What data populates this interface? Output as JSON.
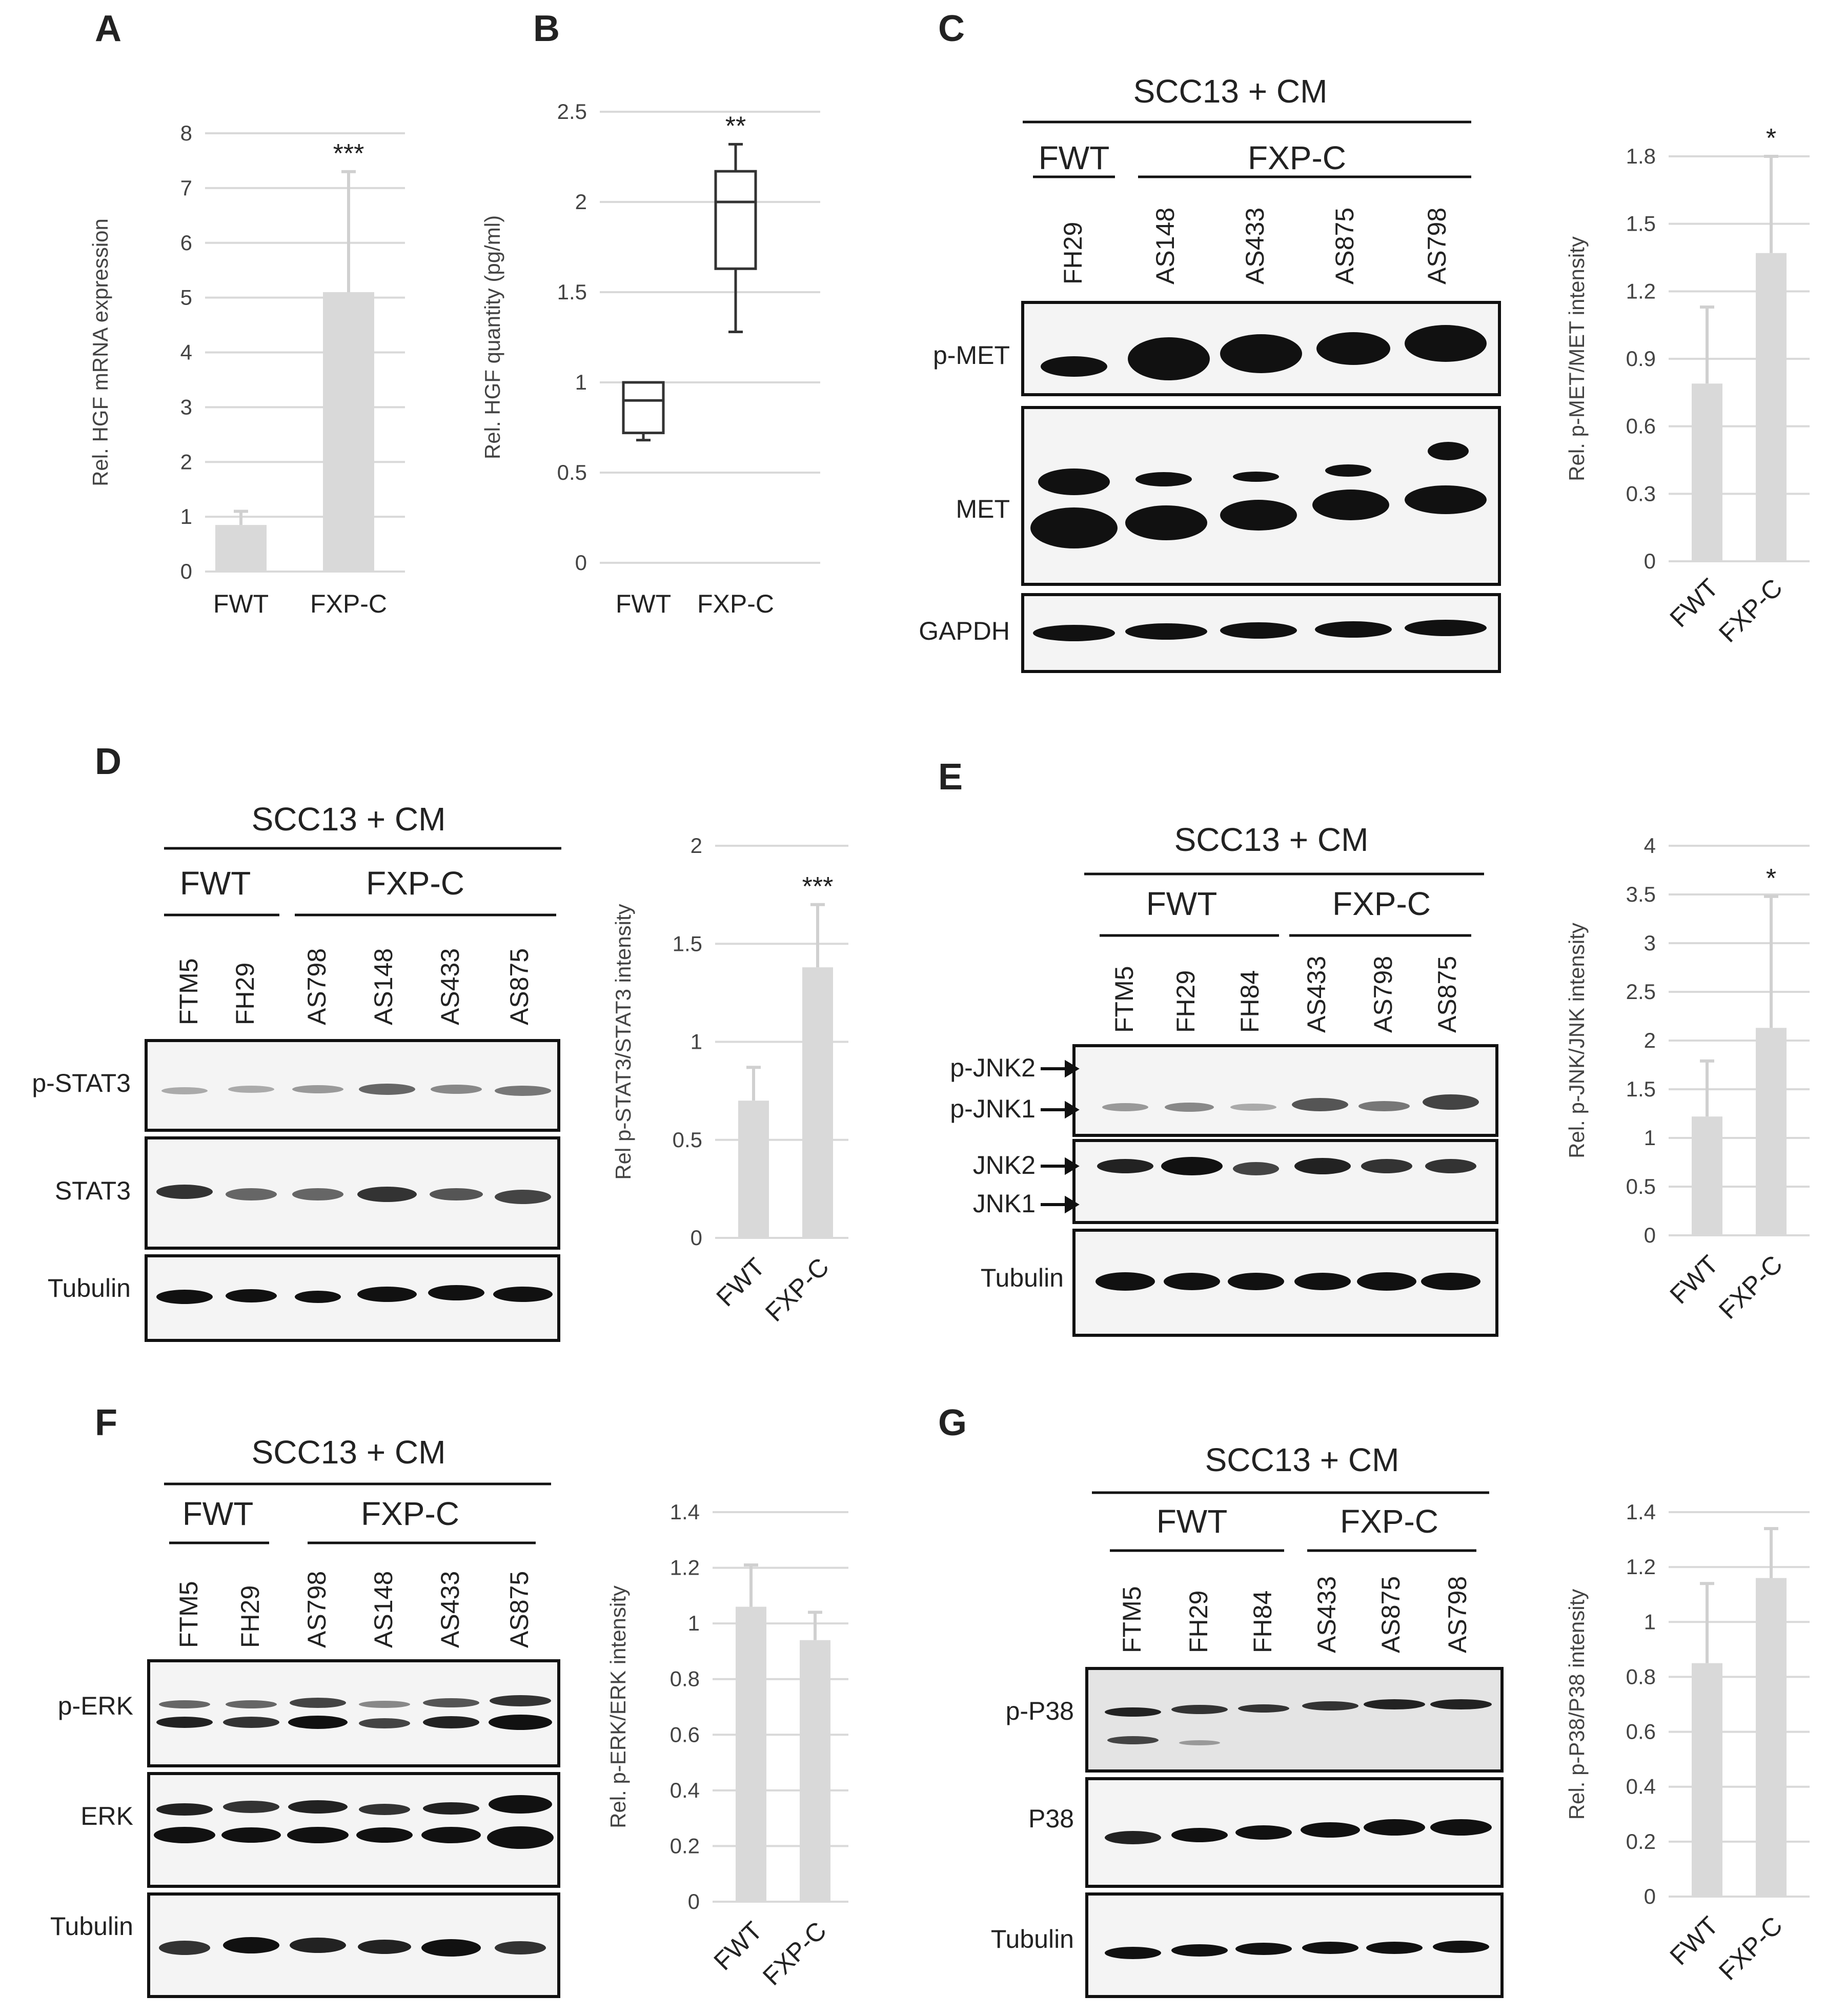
{
  "panels": {
    "A": {
      "label": "A"
    },
    "B": {
      "label": "B"
    },
    "C": {
      "label": "C",
      "header": "SCC13 + CM",
      "group1": "FWT",
      "group2": "FXP-C",
      "lanes": [
        "FH29",
        "AS148",
        "AS433",
        "AS875",
        "AS798"
      ],
      "proteins": [
        "p-MET",
        "MET",
        "GAPDH"
      ]
    },
    "D": {
      "label": "D",
      "header": "SCC13 + CM",
      "group1": "FWT",
      "group2": "FXP-C",
      "lanes": [
        "FTM5",
        "FH29",
        "AS798",
        "AS148",
        "AS433",
        "AS875"
      ],
      "proteins": [
        "p-STAT3",
        "STAT3",
        "Tubulin"
      ]
    },
    "E": {
      "label": "E",
      "header": "SCC13 + CM",
      "group1": "FWT",
      "group2": "FXP-C",
      "lanes": [
        "FTM5",
        "FH29",
        "FH84",
        "AS433",
        "AS798",
        "AS875"
      ],
      "proteins": [
        "p-JNK2",
        "p-JNK1",
        "JNK2",
        "JNK1",
        "Tubulin"
      ]
    },
    "F": {
      "label": "F",
      "header": "SCC13 + CM",
      "group1": "FWT",
      "group2": "FXP-C",
      "lanes": [
        "FTM5",
        "FH29",
        "AS798",
        "AS148",
        "AS433",
        "AS875"
      ],
      "proteins": [
        "p-ERK",
        "ERK",
        "Tubulin"
      ]
    },
    "G": {
      "label": "G",
      "header": "SCC13 + CM",
      "group1": "FWT",
      "group2": "FXP-C",
      "lanes": [
        "FTM5",
        "FH29",
        "FH84",
        "AS433",
        "AS875",
        "AS798"
      ],
      "proteins": [
        "p-P38",
        "P38",
        "Tubulin"
      ]
    }
  },
  "chart_data": [
    {
      "id": "A",
      "type": "bar",
      "categories": [
        "FWT",
        "FXP-C"
      ],
      "values": [
        0.85,
        5.1
      ],
      "errors": [
        0.25,
        2.2
      ],
      "ylabel": "Rel. HGF mRNA expression",
      "ylim": [
        0,
        8
      ],
      "yticks": [
        "0",
        "1",
        "2",
        "3",
        "4",
        "5",
        "6",
        "7",
        "8"
      ],
      "significance": "***",
      "grid": true
    },
    {
      "id": "B",
      "type": "box",
      "categories": [
        "FWT",
        "FXP-C"
      ],
      "boxes": [
        {
          "min": 0.68,
          "q1": 0.72,
          "median": 0.9,
          "q3": 1.0,
          "max": 1.0
        },
        {
          "min": 1.28,
          "q1": 1.63,
          "median": 2.0,
          "q3": 2.17,
          "max": 2.32
        }
      ],
      "ylabel": "Rel. HGF quantity (pg/ml)",
      "ylim": [
        0,
        2.5
      ],
      "yticks": [
        "0",
        "0.5",
        "1",
        "1.5",
        "2",
        "2.5"
      ],
      "significance": "**",
      "grid": true
    },
    {
      "id": "C",
      "type": "bar",
      "categories": [
        "FWT",
        "FXP-C"
      ],
      "values": [
        0.79,
        1.37
      ],
      "errors": [
        0.34,
        0.43
      ],
      "ylabel": "Rel. p-MET/MET intensity",
      "ylim": [
        0,
        1.8
      ],
      "yticks": [
        "0",
        "0.3",
        "0.6",
        "0.9",
        "1.2",
        "1.5",
        "1.8"
      ],
      "significance": "*",
      "grid": true
    },
    {
      "id": "D",
      "type": "bar",
      "categories": [
        "FWT",
        "FXP-C"
      ],
      "values": [
        0.7,
        1.38
      ],
      "errors": [
        0.17,
        0.32
      ],
      "ylabel": "Rel p-STAT3/STAT3 intensity",
      "ylim": [
        0,
        2
      ],
      "yticks": [
        "0",
        "0.5",
        "1",
        "1.5",
        "2"
      ],
      "significance": "***",
      "grid": true
    },
    {
      "id": "E",
      "type": "bar",
      "categories": [
        "FWT",
        "FXP-C"
      ],
      "values": [
        1.22,
        2.13
      ],
      "errors": [
        0.57,
        1.35
      ],
      "ylabel": "Rel. p-JNK/JNK intensity",
      "ylim": [
        0,
        4
      ],
      "yticks": [
        "0",
        "0.5",
        "1",
        "1.5",
        "2",
        "2.5",
        "3",
        "3.5",
        "4"
      ],
      "significance": "*",
      "grid": true
    },
    {
      "id": "F",
      "type": "bar",
      "categories": [
        "FWT",
        "FXP-C"
      ],
      "values": [
        1.06,
        0.94
      ],
      "errors": [
        0.15,
        0.1
      ],
      "ylabel": "Rel. p-ERK/ERK intensity",
      "ylim": [
        0,
        1.4
      ],
      "yticks": [
        "0",
        "0.2",
        "0.4",
        "0.6",
        "0.8",
        "1",
        "1.2",
        "1.4"
      ],
      "significance": "",
      "grid": true
    },
    {
      "id": "G",
      "type": "bar",
      "categories": [
        "FWT",
        "FXP-C"
      ],
      "values": [
        0.85,
        1.16
      ],
      "errors": [
        0.29,
        0.18
      ],
      "ylabel": "Rel. p-P38/P38 intensity",
      "ylim": [
        0,
        1.4
      ],
      "yticks": [
        "0",
        "0.2",
        "0.4",
        "0.6",
        "0.8",
        "1",
        "1.2",
        "1.4"
      ],
      "significance": "",
      "grid": true
    }
  ]
}
